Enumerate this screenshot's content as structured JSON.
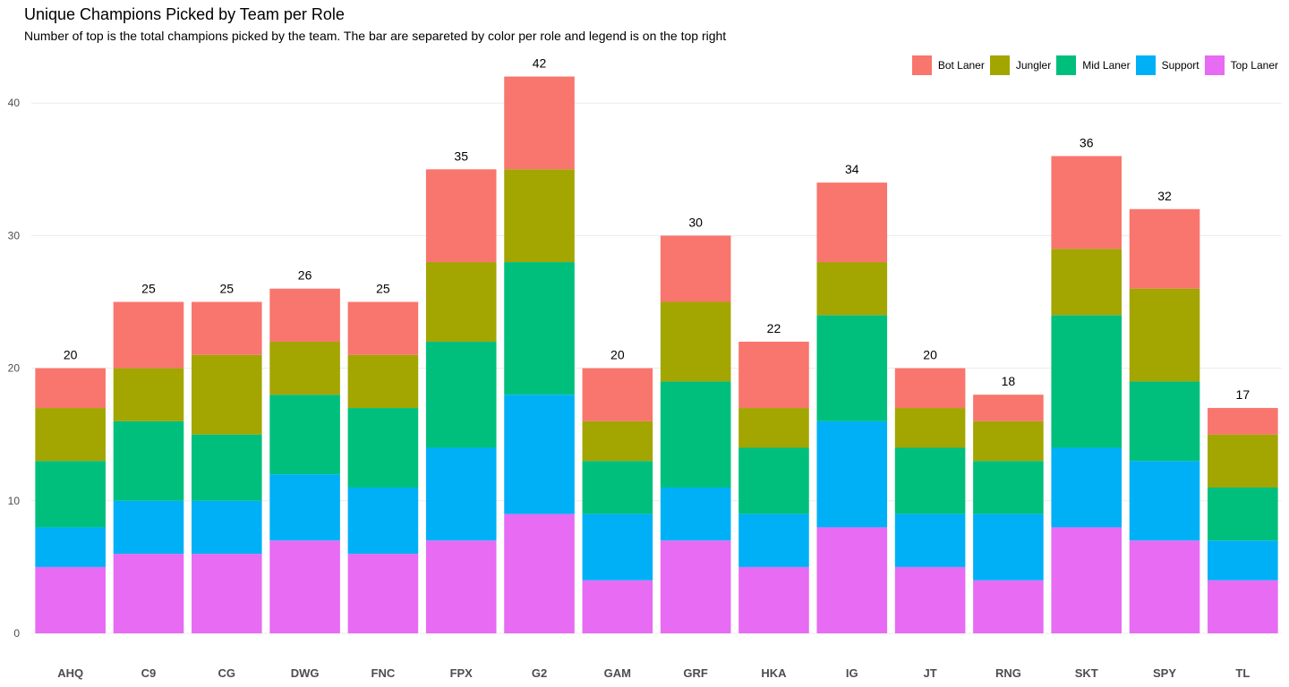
{
  "title": "Unique Champions Picked by Team per Role",
  "subtitle": "Number of top is the total champions picked by the team. The bar are separeted by color per role and legend is on the top right",
  "legend": [
    {
      "label": "Bot Laner",
      "color": "#F8766D"
    },
    {
      "label": "Jungler",
      "color": "#A3A500"
    },
    {
      "label": "Mid Laner",
      "color": "#00BF7D"
    },
    {
      "label": "Support",
      "color": "#00B0F6"
    },
    {
      "label": "Top Laner",
      "color": "#E76BF3"
    }
  ],
  "chart_data": {
    "type": "bar",
    "stacked": true,
    "title": "Unique Champions Picked by Team per Role",
    "subtitle": "Number of top is the total champions picked by the team. The bar are separeted by color per role and legend is on the top right",
    "xlabel": "",
    "ylabel": "",
    "ylim": [
      0,
      42
    ],
    "yticks": [
      0,
      10,
      20,
      30,
      40
    ],
    "grid": "horizontal",
    "legend_position": "top-right",
    "categories": [
      "AHQ",
      "C9",
      "CG",
      "DWG",
      "FNC",
      "FPX",
      "G2",
      "GAM",
      "GRF",
      "HKA",
      "IG",
      "JT",
      "RNG",
      "SKT",
      "SPY",
      "TL"
    ],
    "totals": [
      20,
      25,
      25,
      26,
      25,
      35,
      42,
      20,
      30,
      22,
      34,
      20,
      18,
      36,
      32,
      17
    ],
    "series": [
      {
        "name": "Top Laner",
        "color": "#E76BF3",
        "values": [
          5,
          6,
          6,
          7,
          6,
          7,
          9,
          4,
          7,
          5,
          8,
          5,
          4,
          8,
          7,
          4
        ]
      },
      {
        "name": "Support",
        "color": "#00B0F6",
        "values": [
          3,
          4,
          4,
          5,
          5,
          7,
          9,
          5,
          4,
          4,
          8,
          4,
          5,
          6,
          6,
          3
        ]
      },
      {
        "name": "Mid Laner",
        "color": "#00BF7D",
        "values": [
          5,
          6,
          5,
          6,
          6,
          8,
          10,
          4,
          8,
          5,
          8,
          5,
          4,
          10,
          6,
          4
        ]
      },
      {
        "name": "Jungler",
        "color": "#A3A500",
        "values": [
          4,
          4,
          6,
          4,
          4,
          6,
          7,
          3,
          6,
          3,
          4,
          3,
          3,
          5,
          7,
          4
        ]
      },
      {
        "name": "Bot Laner",
        "color": "#F8766D",
        "values": [
          3,
          5,
          4,
          4,
          4,
          7,
          7,
          4,
          5,
          5,
          6,
          3,
          2,
          7,
          6,
          2
        ]
      }
    ]
  }
}
